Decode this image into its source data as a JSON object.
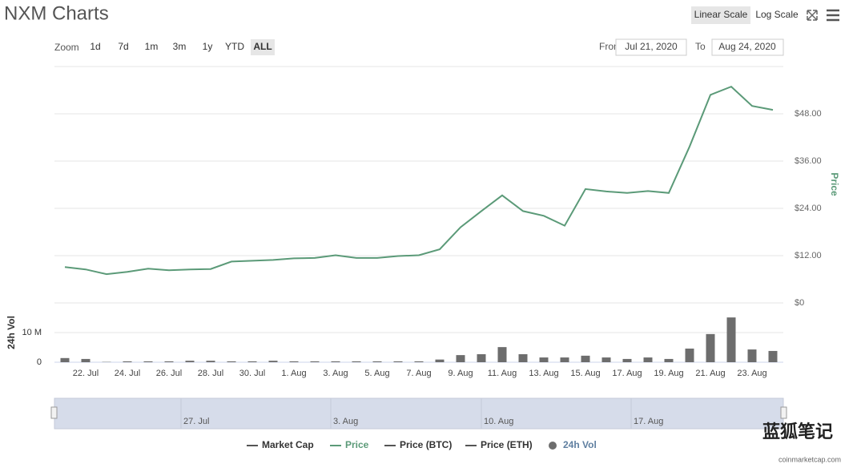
{
  "chart_data": [
    {
      "type": "line",
      "series": [
        {
          "name": "Price",
          "color": "#5b9a78",
          "values": [
            9.1,
            8.5,
            7.3,
            7.9,
            8.7,
            8.3,
            8.5,
            8.6,
            10.5,
            10.7,
            10.9,
            11.3,
            11.4,
            12.1,
            11.4,
            11.4,
            11.9,
            12.1,
            13.6,
            19.2,
            23.3,
            27.3,
            23.3,
            22.1,
            19.6,
            28.9,
            28.3,
            27.9,
            28.4,
            27.9,
            39.7,
            52.8,
            54.9,
            50.0,
            49.0
          ]
        }
      ],
      "y_label": "Price",
      "ylim": [
        0,
        60
      ],
      "yticks": [
        0,
        {
          "value": 12,
          "label": "$12.00"
        },
        {
          "value": 24,
          "label": "$24.00"
        },
        {
          "value": 36,
          "label": "$36.00"
        },
        {
          "value": 48,
          "label": "$48.00"
        }
      ],
      "ytick_labels_zero": "$0",
      "grid": true
    },
    {
      "type": "bar",
      "categories": [
        null,
        "22. Jul",
        null,
        "24. Jul",
        null,
        "26. Jul",
        null,
        "28. Jul",
        null,
        "30. Jul",
        null,
        "1. Aug",
        null,
        "3. Aug",
        null,
        "5. Aug",
        null,
        "7. Aug",
        null,
        "9. Aug",
        null,
        "11. Aug",
        null,
        "13. Aug",
        null,
        "15. Aug",
        null,
        "17. Aug",
        null,
        "19. Aug",
        null,
        "21. Aug",
        null,
        "23. Aug",
        null
      ],
      "series": [
        {
          "name": "24h Vol",
          "color": "#6d6d6d",
          "values": [
            1.4,
            1.1,
            0.1,
            0.3,
            0.3,
            0.3,
            0.5,
            0.5,
            0.3,
            0.3,
            0.5,
            0.3,
            0.3,
            0.3,
            0.3,
            0.3,
            0.3,
            0.3,
            0.9,
            2.4,
            2.7,
            5.1,
            2.7,
            1.6,
            1.6,
            2.2,
            1.6,
            1.1,
            1.6,
            1.1,
            4.6,
            9.5,
            15.1,
            4.3,
            3.8
          ]
        }
      ],
      "y_label": "24h Vol",
      "ylim": [
        0,
        20
      ],
      "yticks": [
        0,
        {
          "value": 10,
          "label": "10 M"
        }
      ],
      "grid": true
    }
  ],
  "ui": {
    "title": "NXM Charts",
    "scale_buttons": [
      "Linear Scale",
      "Log Scale"
    ],
    "zoom_label": "Zoom",
    "zoom_buttons": [
      "1d",
      "7d",
      "1m",
      "3m",
      "1y",
      "YTD",
      "ALL"
    ],
    "from_label": "From",
    "from_value": "Jul 21, 2020",
    "to_label": "To",
    "to_value": "Aug 24, 2020",
    "navigator_labels": [
      "27. Jul",
      "3. Aug",
      "10. Aug",
      "17. Aug"
    ],
    "legend": [
      {
        "name": "Market Cap",
        "color": "#555555"
      },
      {
        "name": "Price",
        "color": "#5b9a78"
      },
      {
        "name": "Price (BTC)",
        "color": "#555555"
      },
      {
        "name": "Price (ETH)",
        "color": "#555555"
      },
      {
        "name": "24h Vol",
        "color": "#6d6d6d"
      }
    ],
    "watermark": "蓝狐笔记",
    "credit": "coinmarketcap.com"
  }
}
